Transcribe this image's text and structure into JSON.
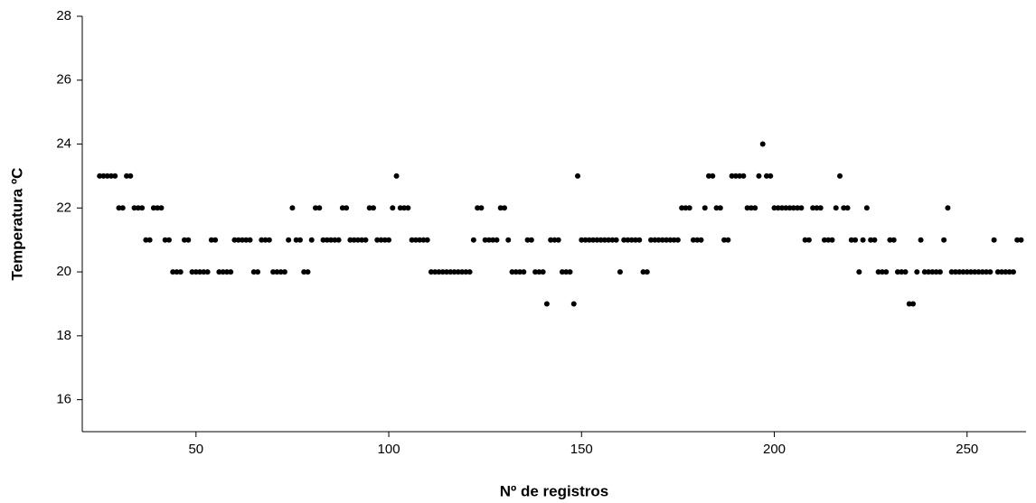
{
  "chart_data": {
    "type": "scatter",
    "x_label": "Nº de registros",
    "y_label": "Temperatura ºC",
    "xlim": [
      20.5,
      265.3
    ],
    "ylim": [
      15,
      28
    ],
    "xticks": [
      50,
      100,
      150,
      200,
      250
    ],
    "yticks": [
      16,
      18,
      20,
      22,
      24,
      26,
      28
    ],
    "color": "#000000",
    "x": [
      25,
      26,
      27,
      28,
      29,
      30,
      31,
      32,
      33,
      34,
      35,
      36,
      37,
      38,
      39,
      40,
      41,
      42,
      43,
      44,
      45,
      46,
      47,
      48,
      49,
      50,
      51,
      52,
      53,
      54,
      55,
      56,
      57,
      58,
      59,
      60,
      61,
      62,
      63,
      64,
      65,
      66,
      67,
      68,
      69,
      70,
      71,
      72,
      73,
      74,
      75,
      76,
      77,
      78,
      79,
      80,
      81,
      82,
      83,
      84,
      85,
      86,
      87,
      88,
      89,
      90,
      91,
      92,
      93,
      94,
      95,
      96,
      97,
      98,
      99,
      100,
      101,
      102,
      103,
      104,
      105,
      106,
      107,
      108,
      109,
      110,
      111,
      112,
      113,
      114,
      115,
      116,
      117,
      118,
      119,
      120,
      121,
      122,
      123,
      124,
      125,
      126,
      127,
      128,
      129,
      130,
      131,
      132,
      133,
      134,
      135,
      136,
      137,
      138,
      139,
      140,
      141,
      142,
      143,
      144,
      145,
      146,
      147,
      148,
      149,
      150,
      151,
      152,
      153,
      154,
      155,
      156,
      157,
      158,
      159,
      160,
      161,
      162,
      163,
      164,
      165,
      166,
      167,
      168,
      169,
      170,
      171,
      172,
      173,
      174,
      175,
      176,
      177,
      178,
      179,
      180,
      181,
      182,
      183,
      184,
      185,
      186,
      187,
      188,
      189,
      190,
      191,
      192,
      193,
      194,
      195,
      196,
      197,
      198,
      199,
      200,
      201,
      202,
      203,
      204,
      205,
      206,
      207,
      208,
      209,
      210,
      211,
      212,
      213,
      214,
      215,
      216,
      217,
      218,
      219,
      220,
      221,
      222,
      223,
      224,
      225,
      226,
      227,
      228,
      229,
      230,
      231,
      232,
      233,
      234,
      235,
      236,
      237,
      238,
      239,
      240,
      241,
      242,
      243,
      244,
      245,
      246,
      247,
      248,
      249,
      250,
      251,
      252,
      253,
      254,
      255,
      256,
      257,
      258,
      259,
      260,
      261,
      262,
      263,
      264
    ],
    "values": [
      23,
      23,
      23,
      23,
      23,
      22,
      22,
      23,
      23,
      22,
      22,
      22,
      21,
      21,
      22,
      22,
      22,
      21,
      21,
      20,
      20,
      20,
      21,
      21,
      20,
      20,
      20,
      20,
      20,
      21,
      21,
      20,
      20,
      20,
      20,
      21,
      21,
      21,
      21,
      21,
      20,
      20,
      21,
      21,
      21,
      20,
      20,
      20,
      20,
      21,
      22,
      21,
      21,
      20,
      20,
      21,
      22,
      22,
      21,
      21,
      21,
      21,
      21,
      22,
      22,
      21,
      21,
      21,
      21,
      21,
      22,
      22,
      21,
      21,
      21,
      21,
      22,
      23,
      22,
      22,
      22,
      21,
      21,
      21,
      21,
      21,
      20,
      20,
      20,
      20,
      20,
      20,
      20,
      20,
      20,
      20,
      20,
      21,
      22,
      22,
      21,
      21,
      21,
      21,
      22,
      22,
      21,
      20,
      20,
      20,
      20,
      21,
      21,
      20,
      20,
      20,
      19,
      21,
      21,
      21,
      20,
      20,
      20,
      19,
      23,
      21,
      21,
      21,
      21,
      21,
      21,
      21,
      21,
      21,
      21,
      20,
      21,
      21,
      21,
      21,
      21,
      20,
      20,
      21,
      21,
      21,
      21,
      21,
      21,
      21,
      21,
      22,
      22,
      22,
      21,
      21,
      21,
      22,
      23,
      23,
      22,
      22,
      21,
      21,
      23,
      23,
      23,
      23,
      22,
      22,
      22,
      23,
      24,
      23,
      23,
      22,
      22,
      22,
      22,
      22,
      22,
      22,
      22,
      21,
      21,
      22,
      22,
      22,
      21,
      21,
      21,
      22,
      23,
      22,
      22,
      21,
      21,
      20,
      21,
      22,
      21,
      21,
      20,
      20,
      20,
      21,
      21,
      20,
      20,
      20,
      19,
      19,
      20,
      21,
      20,
      20,
      20,
      20,
      20,
      21,
      22,
      20,
      20,
      20,
      20,
      20,
      20,
      20,
      20,
      20,
      20,
      20,
      21,
      20,
      20,
      20,
      20,
      20,
      21,
      21
    ]
  }
}
